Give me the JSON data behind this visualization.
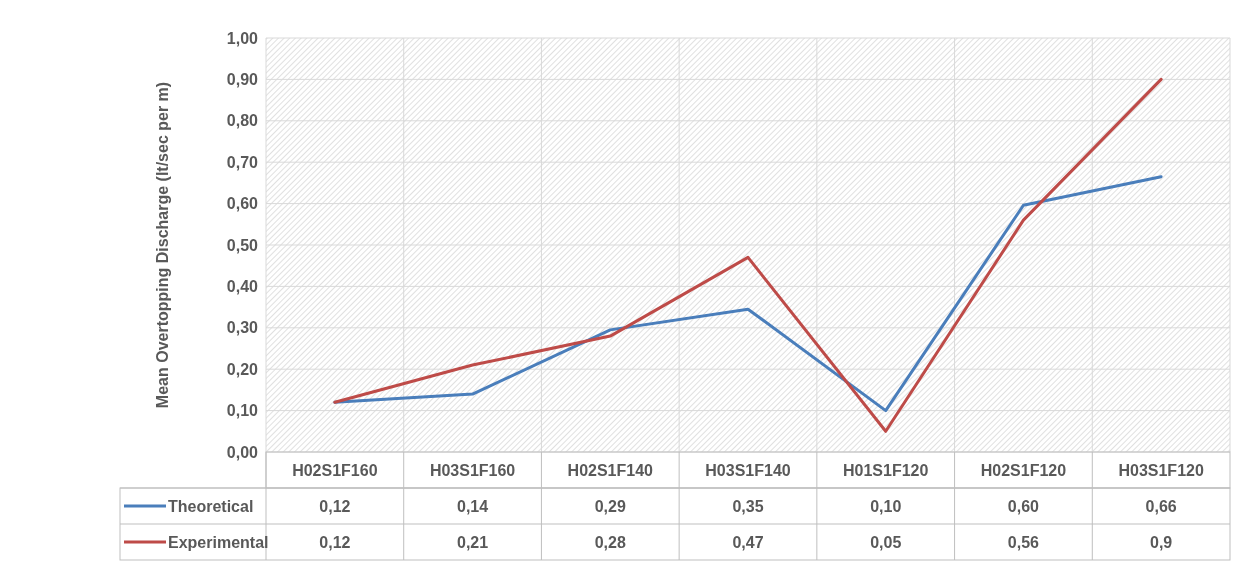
{
  "chart_data": {
    "type": "line",
    "ylabel": "Mean Overtopping Discharge (lt/sec per m)",
    "categories": [
      "H02S1F160",
      "H03S1F160",
      "H02S1F140",
      "H03S1F140",
      "H01S1F120",
      "H02S1F120",
      "H03S1F120"
    ],
    "series": [
      {
        "name": "Theoretical",
        "color": "#4a7ebb",
        "values": [
          0.12,
          0.14,
          0.295,
          0.345,
          0.1,
          0.596,
          0.665
        ],
        "value_labels": [
          "0,12",
          "0,14",
          "0,29",
          "0,35",
          "0,10",
          "0,60",
          "0,66"
        ]
      },
      {
        "name": "Experimental",
        "color": "#be4b48",
        "values": [
          0.12,
          0.21,
          0.28,
          0.47,
          0.05,
          0.56,
          0.9
        ],
        "value_labels": [
          "0,12",
          "0,21",
          "0,28",
          "0,47",
          "0,05",
          "0,56",
          "0,9"
        ]
      }
    ],
    "ylim": [
      0,
      1
    ],
    "yticks": [
      {
        "value": 0,
        "label": "0,00"
      },
      {
        "value": 0.1,
        "label": "0,10"
      },
      {
        "value": 0.2,
        "label": "0,20"
      },
      {
        "value": 0.3,
        "label": "0,30"
      },
      {
        "value": 0.4,
        "label": "0,40"
      },
      {
        "value": 0.5,
        "label": "0,50"
      },
      {
        "value": 0.6,
        "label": "0,60"
      },
      {
        "value": 0.7,
        "label": "0,70"
      },
      {
        "value": 0.8,
        "label": "0,80"
      },
      {
        "value": 0.9,
        "label": "0,90"
      },
      {
        "value": 1,
        "label": "1,00"
      }
    ],
    "grid": true,
    "legend": "bottom left",
    "marker": "none",
    "line_style": "solid"
  }
}
